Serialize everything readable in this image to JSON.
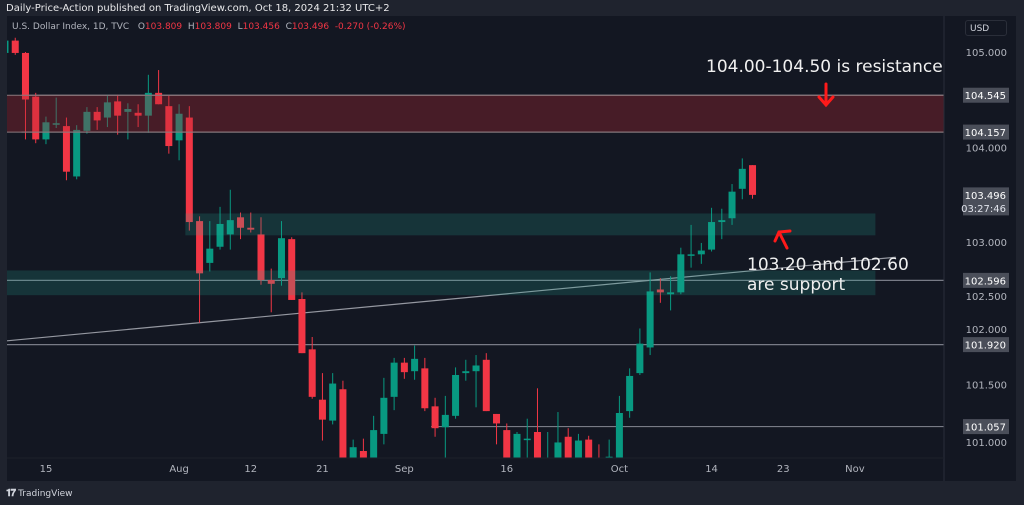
{
  "header": {
    "published": "Daily-Price-Action published on TradingView.com, Oct 18, 2024 21:32 UTC+2"
  },
  "legend": {
    "symbol": "U.S. Dollar Index, 1D, TVC",
    "o_label": "O",
    "o": "103.809",
    "h_label": "H",
    "h": "103.809",
    "l_label": "L",
    "l": "103.456",
    "c_label": "C",
    "c": "103.496",
    "change": "-0.270 (-0.26%)"
  },
  "currency": "USD",
  "footer": {
    "logo_text": "TradingView",
    "logo_mark": "TV"
  },
  "annotations": {
    "resistance": "104.00-104.50 is resistance",
    "support_line1": "103.20 and 102.60",
    "support_line2": "are support"
  },
  "colors": {
    "up": "#089981",
    "down": "#f23645",
    "background": "#131722",
    "resistance_zone": "#4a2329",
    "support_zone": "#1b3a3c",
    "arrow": "#ff1a1a"
  },
  "chart_data": {
    "type": "candlestick",
    "title": "U.S. Dollar Index, 1D, TVC",
    "ylim": [
      100.73,
      105.38
    ],
    "y_scale": "linear",
    "grid": false,
    "y_ticks": [
      "105.000",
      "104.000",
      "103.000",
      "102.500",
      "102.000",
      "101.500",
      "101.000"
    ],
    "x_ticks": [
      {
        "label": "15",
        "date": "2024-07-15"
      },
      {
        "label": "Aug",
        "date": "2024-08-01"
      },
      {
        "label": "12",
        "date": "2024-08-12"
      },
      {
        "label": "21",
        "date": "2024-08-21"
      },
      {
        "label": "Sep",
        "date": "2024-09-02"
      },
      {
        "label": "16",
        "date": "2024-09-16"
      },
      {
        "label": "Oct",
        "date": "2024-10-01"
      },
      {
        "label": "14",
        "date": "2024-10-14"
      },
      {
        "label": "23",
        "date": "2024-10-23"
      },
      {
        "label": "Nov",
        "date": "2024-11-01"
      }
    ],
    "candles": [
      [
        "2024-07-09",
        104.99,
        105.15,
        104.95,
        105.12
      ],
      [
        "2024-07-10",
        105.12,
        105.15,
        104.97,
        104.99
      ],
      [
        "2024-07-11",
        104.99,
        105.0,
        104.08,
        104.5
      ],
      [
        "2024-07-12",
        104.53,
        104.57,
        104.04,
        104.08
      ],
      [
        "2024-07-15",
        104.08,
        104.32,
        104.03,
        104.26
      ],
      [
        "2024-07-16",
        104.25,
        104.52,
        104.2,
        104.25
      ],
      [
        "2024-07-17",
        104.22,
        104.31,
        103.65,
        103.74
      ],
      [
        "2024-07-18",
        103.69,
        104.23,
        103.66,
        104.18
      ],
      [
        "2024-07-19",
        104.17,
        104.42,
        104.14,
        104.37
      ],
      [
        "2024-07-22",
        104.37,
        104.42,
        104.18,
        104.28
      ],
      [
        "2024-07-23",
        104.31,
        104.55,
        104.21,
        104.47
      ],
      [
        "2024-07-24",
        104.48,
        104.55,
        104.13,
        104.33
      ],
      [
        "2024-07-25",
        104.37,
        104.46,
        104.08,
        104.4
      ],
      [
        "2024-07-26",
        104.36,
        104.45,
        104.21,
        104.33
      ],
      [
        "2024-07-29",
        104.33,
        104.76,
        104.15,
        104.57
      ],
      [
        "2024-07-30",
        104.57,
        104.81,
        104.45,
        104.45
      ],
      [
        "2024-07-31",
        104.43,
        104.54,
        103.93,
        104.01
      ],
      [
        "2024-08-01",
        104.07,
        104.45,
        103.86,
        104.35
      ],
      [
        "2024-08-02",
        104.31,
        104.43,
        103.12,
        103.21
      ],
      [
        "2024-08-05",
        103.22,
        103.27,
        102.15,
        102.67
      ],
      [
        "2024-08-06",
        102.78,
        103.22,
        102.69,
        102.93
      ],
      [
        "2024-08-07",
        102.95,
        103.37,
        102.92,
        103.19
      ],
      [
        "2024-08-08",
        103.08,
        103.55,
        102.92,
        103.23
      ],
      [
        "2024-08-09",
        103.26,
        103.31,
        103.03,
        103.15
      ],
      [
        "2024-08-12",
        103.15,
        103.31,
        103.1,
        103.13
      ],
      [
        "2024-08-13",
        103.08,
        103.26,
        102.55,
        102.6
      ],
      [
        "2024-08-14",
        102.6,
        102.72,
        102.26,
        102.56
      ],
      [
        "2024-08-15",
        102.62,
        103.22,
        102.54,
        103.04
      ],
      [
        "2024-08-16",
        103.03,
        103.05,
        102.39,
        102.39
      ],
      [
        "2024-08-19",
        102.4,
        102.47,
        101.83,
        101.83
      ],
      [
        "2024-08-20",
        101.87,
        102.0,
        101.35,
        101.37
      ],
      [
        "2024-08-21",
        101.34,
        101.62,
        100.91,
        101.13
      ],
      [
        "2024-08-22",
        101.12,
        101.62,
        101.08,
        101.51
      ],
      [
        "2024-08-23",
        101.45,
        101.54,
        100.6,
        100.68
      ],
      [
        "2024-08-26",
        100.7,
        100.92,
        100.55,
        100.84
      ],
      [
        "2024-08-27",
        100.8,
        100.93,
        100.4,
        100.5
      ],
      [
        "2024-08-28",
        100.5,
        101.17,
        100.45,
        101.02
      ],
      [
        "2024-08-29",
        100.98,
        101.57,
        100.87,
        101.36
      ],
      [
        "2024-08-30",
        101.37,
        101.78,
        101.23,
        101.73
      ],
      [
        "2024-09-02",
        101.73,
        101.78,
        101.56,
        101.63
      ],
      [
        "2024-09-03",
        101.64,
        101.91,
        101.55,
        101.77
      ],
      [
        "2024-09-04",
        101.67,
        101.78,
        101.22,
        101.25
      ],
      [
        "2024-09-05",
        101.27,
        101.36,
        100.95,
        101.04
      ],
      [
        "2024-09-06",
        101.05,
        101.38,
        100.73,
        101.18
      ],
      [
        "2024-09-09",
        101.17,
        101.68,
        101.14,
        101.6
      ],
      [
        "2024-09-10",
        101.62,
        101.76,
        101.54,
        101.64
      ],
      [
        "2024-09-11",
        101.64,
        101.81,
        101.26,
        101.7
      ],
      [
        "2024-09-12",
        101.76,
        101.83,
        101.22,
        101.22
      ],
      [
        "2024-09-13",
        101.19,
        101.19,
        100.87,
        101.09
      ],
      [
        "2024-09-16",
        101.02,
        101.09,
        100.6,
        100.65
      ],
      [
        "2024-09-17",
        100.65,
        101.0,
        100.6,
        100.98
      ],
      [
        "2024-09-18",
        100.93,
        101.14,
        100.2,
        100.93
      ],
      [
        "2024-09-19",
        101.0,
        101.46,
        100.55,
        100.65
      ],
      [
        "2024-09-20",
        100.45,
        101.0,
        100.35,
        100.7
      ],
      [
        "2024-09-23",
        100.6,
        101.21,
        100.5,
        100.89
      ],
      [
        "2024-09-24",
        100.95,
        101.04,
        100.2,
        100.4
      ],
      [
        "2024-09-25",
        100.4,
        100.98,
        100.2,
        100.91
      ],
      [
        "2024-09-26",
        100.92,
        100.96,
        100.4,
        100.55
      ],
      [
        "2024-09-27",
        100.7,
        100.87,
        100.2,
        100.4
      ],
      [
        "2024-09-30",
        100.72,
        100.92,
        100.4,
        100.74
      ],
      [
        "2024-10-01",
        100.7,
        101.38,
        100.6,
        101.2
      ],
      [
        "2024-10-02",
        101.22,
        101.67,
        101.15,
        101.59
      ],
      [
        "2024-10-03",
        101.62,
        102.09,
        101.6,
        101.93
      ],
      [
        "2024-10-04",
        101.89,
        102.68,
        101.81,
        102.48
      ],
      [
        "2024-10-07",
        102.5,
        102.62,
        102.36,
        102.47
      ],
      [
        "2024-10-08",
        102.45,
        102.64,
        102.28,
        102.47
      ],
      [
        "2024-10-09",
        102.47,
        102.94,
        102.45,
        102.87
      ],
      [
        "2024-10-10",
        102.87,
        103.18,
        102.73,
        102.87
      ],
      [
        "2024-10-11",
        102.87,
        102.99,
        102.77,
        102.91
      ],
      [
        "2024-10-14",
        102.92,
        103.36,
        102.9,
        103.21
      ],
      [
        "2024-10-15",
        103.21,
        103.35,
        103.03,
        103.23
      ],
      [
        "2024-10-16",
        103.25,
        103.61,
        103.18,
        103.53
      ],
      [
        "2024-10-17",
        103.56,
        103.88,
        103.45,
        103.77
      ],
      [
        "2024-10-18",
        103.809,
        103.809,
        103.456,
        103.496
      ]
    ],
    "zones": [
      {
        "kind": "resistance",
        "from_date": "2024-07-09",
        "to_date": "extend-right",
        "low": 104.157,
        "high": 104.545
      },
      {
        "kind": "support",
        "from_date": "2024-08-02",
        "to_date": "2024-11-05",
        "low": 103.07,
        "high": 103.3
      },
      {
        "kind": "support",
        "from_date": "2024-07-09",
        "to_date": "2024-11-05",
        "low": 102.44,
        "high": 102.7
      }
    ],
    "hlines": [
      {
        "price": 104.545,
        "from_date": "2024-07-11",
        "label": "104.545"
      },
      {
        "price": 104.157,
        "from_date": "2024-07-11",
        "label": "104.157"
      },
      {
        "price": 102.596,
        "from_date": "2024-07-09",
        "label": "102.596"
      },
      {
        "price": 101.92,
        "from_date": "2024-07-09",
        "label": "101.920"
      },
      {
        "price": 101.057,
        "from_date": "2024-09-05",
        "label": "101.057"
      }
    ],
    "trendline": {
      "start": {
        "date": "2024-07-09",
        "price": 101.96
      },
      "end": {
        "date": "2024-11-07",
        "price": 102.84
      }
    },
    "last_price": {
      "label": "103.496",
      "countdown": "03:27:46"
    }
  }
}
